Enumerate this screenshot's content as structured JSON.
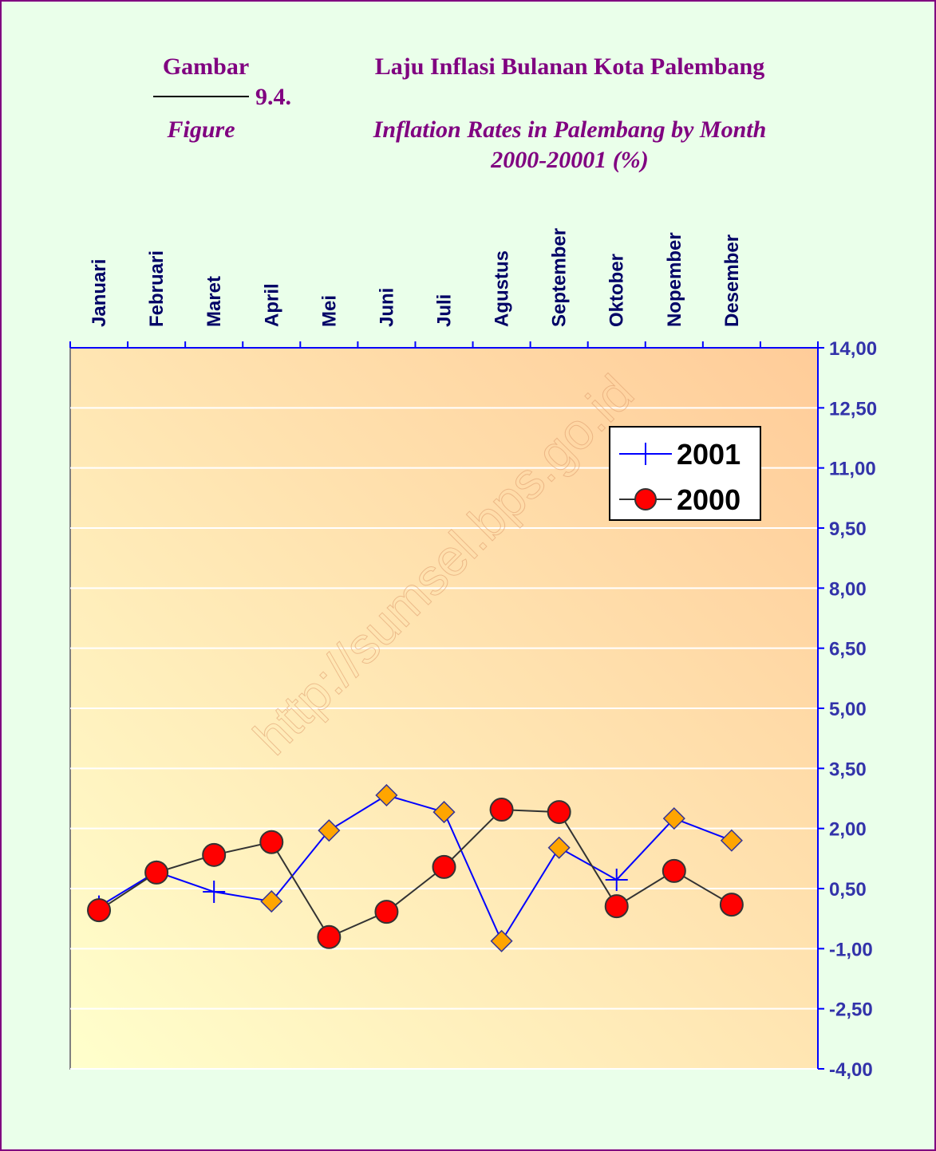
{
  "header": {
    "gambar": "Gambar",
    "number": "9.4.",
    "figure": "Figure",
    "title_id": "Laju Inflasi Bulanan Kota Palembang",
    "title_en": "Inflation Rates  in Palembang by Month",
    "subtitle": "2000-20001 (%)"
  },
  "watermark": "http://sumsel.bps.go.id",
  "chart_data": {
    "type": "line",
    "categories": [
      "Januari",
      "Februari",
      "Maret",
      "April",
      "Mei",
      "Juni",
      "Juli",
      "Agustus",
      "September",
      "Oktober",
      "Nopember",
      "Desember",
      null
    ],
    "series": [
      {
        "name": "2001",
        "color": "#0000ff",
        "marker": "plus",
        "point_markers": [
          "plus",
          "plus",
          "plus",
          "diamond",
          "diamond",
          "diamond",
          "diamond",
          "diamond",
          "diamond",
          "plus",
          "diamond",
          "diamond",
          null
        ],
        "values": [
          0.05,
          0.92,
          0.42,
          0.18,
          1.95,
          2.83,
          2.41,
          -0.81,
          1.52,
          0.72,
          2.25,
          1.7,
          null
        ]
      },
      {
        "name": "2000",
        "color": "#333333",
        "marker": "circle",
        "marker_color": "#ff0000",
        "values": [
          -0.04,
          0.9,
          1.34,
          1.66,
          -0.71,
          -0.08,
          1.04,
          2.47,
          2.41,
          0.06,
          0.94,
          0.1,
          null
        ]
      }
    ],
    "diamond_color": "#ffa500",
    "ylim": [
      -4,
      14
    ],
    "yticks": [
      {
        "value": 14,
        "label": "14,00"
      },
      {
        "value": 12.5,
        "label": "12,50"
      },
      {
        "value": 11,
        "label": "11,00"
      },
      {
        "value": 9.5,
        "label": "9,50"
      },
      {
        "value": 8,
        "label": "8,00"
      },
      {
        "value": 6.5,
        "label": "6,50"
      },
      {
        "value": 5,
        "label": "5,00"
      },
      {
        "value": 3.5,
        "label": "3,50"
      },
      {
        "value": 2,
        "label": "2,00"
      },
      {
        "value": 0.5,
        "label": "0,50"
      },
      {
        "value": -1,
        "label": "-1,00"
      },
      {
        "value": -2.5,
        "label": "-2,50"
      },
      {
        "value": -4,
        "label": "-4,00"
      }
    ],
    "grid": true,
    "y_axis_side": "right",
    "x_axis_side": "top"
  }
}
